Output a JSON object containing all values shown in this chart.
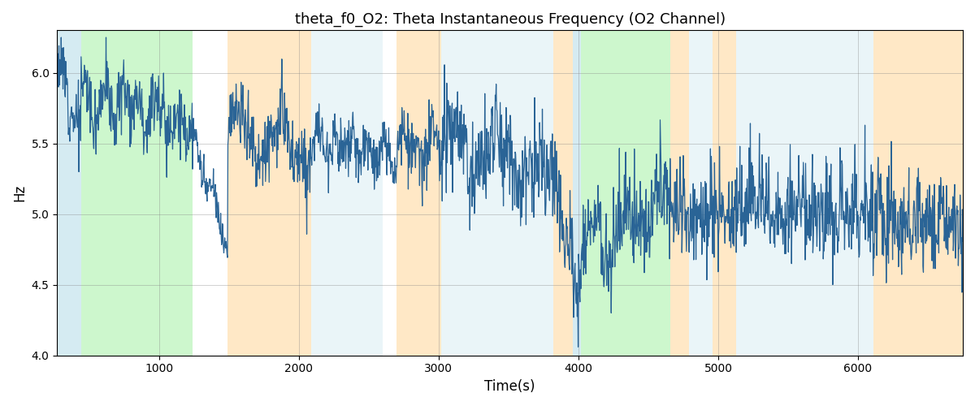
{
  "title": "theta_f0_O2: Theta Instantaneous Frequency (O2 Channel)",
  "xlabel": "Time(s)",
  "ylabel": "Hz",
  "xlim": [
    270,
    6750
  ],
  "ylim": [
    4.0,
    6.3
  ],
  "yticks": [
    4.0,
    4.5,
    5.0,
    5.5,
    6.0
  ],
  "figsize": [
    12.0,
    5.0
  ],
  "dpi": 100,
  "line_color": "#2a6496",
  "line_width": 0.9,
  "bg_regions": [
    {
      "xstart": 270,
      "xend": 440,
      "color": "#add8e6",
      "alpha": 0.5
    },
    {
      "xstart": 440,
      "xend": 1240,
      "color": "#90ee90",
      "alpha": 0.45
    },
    {
      "xstart": 1490,
      "xend": 2090,
      "color": "#ffd9a0",
      "alpha": 0.6
    },
    {
      "xstart": 2090,
      "xend": 2600,
      "color": "#add8e6",
      "alpha": 0.25
    },
    {
      "xstart": 2700,
      "xend": 3020,
      "color": "#ffd9a0",
      "alpha": 0.6
    },
    {
      "xstart": 3020,
      "xend": 3820,
      "color": "#add8e6",
      "alpha": 0.25
    },
    {
      "xstart": 3820,
      "xend": 3960,
      "color": "#ffd9a0",
      "alpha": 0.6
    },
    {
      "xstart": 3960,
      "xend": 4020,
      "color": "#add8e6",
      "alpha": 0.5
    },
    {
      "xstart": 4020,
      "xend": 4660,
      "color": "#90ee90",
      "alpha": 0.45
    },
    {
      "xstart": 4660,
      "xend": 4790,
      "color": "#ffd9a0",
      "alpha": 0.6
    },
    {
      "xstart": 4790,
      "xend": 4960,
      "color": "#add8e6",
      "alpha": 0.25
    },
    {
      "xstart": 4960,
      "xend": 5130,
      "color": "#ffd9a0",
      "alpha": 0.6
    },
    {
      "xstart": 5130,
      "xend": 5930,
      "color": "#add8e6",
      "alpha": 0.25
    },
    {
      "xstart": 5930,
      "xend": 6110,
      "color": "#add8e6",
      "alpha": 0.25
    },
    {
      "xstart": 6110,
      "xend": 6750,
      "color": "#ffd9a0",
      "alpha": 0.6
    }
  ],
  "seed": 12,
  "num_points": 2000
}
